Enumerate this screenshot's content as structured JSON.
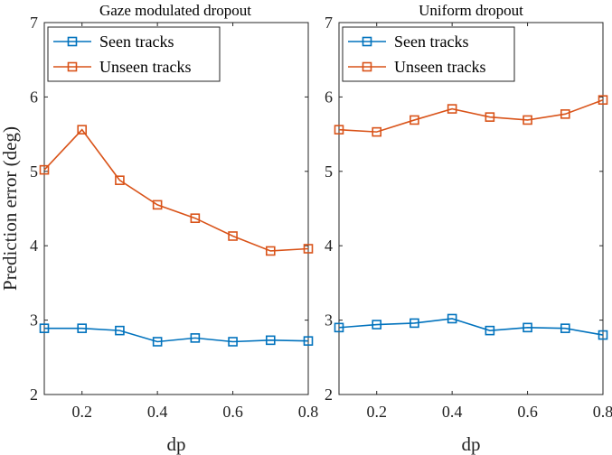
{
  "chart_data": [
    {
      "type": "line",
      "title": "Gaze modulated dropout",
      "xlabel": "dp",
      "ylabel": "Prediction error (deg)",
      "xlim": [
        0.1,
        0.8
      ],
      "ylim": [
        2,
        7
      ],
      "xticks": [
        "0.2",
        "0.4",
        "0.6",
        "0.8"
      ],
      "yticks": [
        "2",
        "3",
        "4",
        "5",
        "6",
        "7"
      ],
      "legend_position": "top-left",
      "x": [
        0.1,
        0.2,
        0.3,
        0.4,
        0.5,
        0.6,
        0.7,
        0.8
      ],
      "series": [
        {
          "name": "Seen tracks",
          "color": "#0072BD",
          "values": [
            2.89,
            2.89,
            2.86,
            2.71,
            2.76,
            2.71,
            2.73,
            2.72
          ]
        },
        {
          "name": "Unseen tracks",
          "color": "#D95319",
          "values": [
            5.02,
            5.56,
            4.88,
            4.55,
            4.37,
            4.13,
            3.93,
            3.96
          ]
        }
      ]
    },
    {
      "type": "line",
      "title": "Uniform dropout",
      "xlabel": "dp",
      "ylabel": "",
      "xlim": [
        0.1,
        0.8
      ],
      "ylim": [
        2,
        7
      ],
      "xticks": [
        "0.2",
        "0.4",
        "0.6",
        "0.8"
      ],
      "yticks": [
        "2",
        "3",
        "4",
        "5",
        "6",
        "7"
      ],
      "legend_position": "top-left",
      "x": [
        0.1,
        0.2,
        0.3,
        0.4,
        0.5,
        0.6,
        0.7,
        0.8
      ],
      "series": [
        {
          "name": "Seen tracks",
          "color": "#0072BD",
          "values": [
            2.9,
            2.94,
            2.96,
            3.02,
            2.86,
            2.9,
            2.89,
            2.8
          ]
        },
        {
          "name": "Unseen tracks",
          "color": "#D95319",
          "values": [
            5.56,
            5.53,
            5.69,
            5.84,
            5.73,
            5.69,
            5.77,
            5.96
          ]
        }
      ]
    }
  ]
}
